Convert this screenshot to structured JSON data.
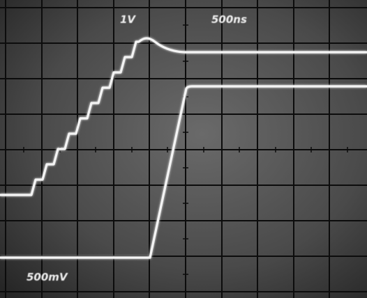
{
  "labels": {
    "top_left": "1V",
    "top_right": "500ns",
    "bottom_left": "500mV"
  }
}
